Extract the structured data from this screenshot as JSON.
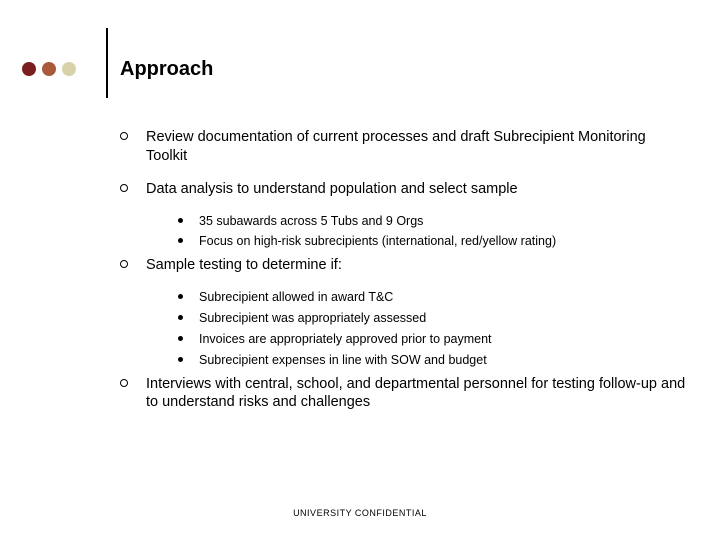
{
  "colors": {
    "background": "#ffffff",
    "text": "#000000",
    "dot1": "#7a1f1f",
    "dot2": "#a85a3a",
    "dot3": "#d8d2a8",
    "vline": "#000000"
  },
  "title": "Approach",
  "title_fontsize": 20,
  "body_fontsize_l1": 14.5,
  "body_fontsize_l2": 12.5,
  "bullets": [
    {
      "text": "Review documentation of current processes and draft Subrecipient Monitoring Toolkit",
      "children": []
    },
    {
      "text": "Data analysis to understand population and select sample",
      "children": [
        "35 subawards across 5 Tubs and 9 Orgs",
        "Focus on high-risk subrecipients (international, red/yellow rating)"
      ]
    },
    {
      "text": "Sample testing to determine if:",
      "children": [
        "Subrecipient allowed in award T&C",
        "Subrecipient was appropriately assessed",
        "Invoices are appropriately approved prior to payment",
        "Subrecipient expenses in line with SOW and budget"
      ]
    },
    {
      "text": "Interviews with central, school, and departmental personnel for testing follow-up and to understand risks and challenges",
      "children": []
    }
  ],
  "footer": "UNIVERSITY CONFIDENTIAL"
}
